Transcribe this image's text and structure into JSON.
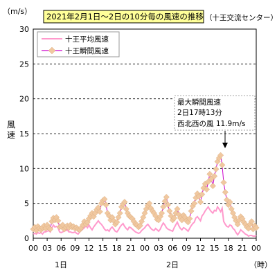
{
  "chart_data": {
    "type": "line",
    "title": "2021年2月1日～2日の10分毎の風速の推移",
    "subtitle": "（十王交流センター）",
    "ylabel": "風速",
    "yunit": "（m/s）",
    "xunit": "（時）",
    "ylim": [
      0,
      30
    ],
    "yticks": [
      "0",
      "5",
      "10",
      "15",
      "20",
      "25",
      "30"
    ],
    "xticks": [
      "00",
      "03",
      "06",
      "09",
      "12",
      "15",
      "18",
      "21",
      "00",
      "03",
      "06",
      "09",
      "12",
      "15",
      "18",
      "21",
      "00"
    ],
    "day_labels": [
      "1日",
      "2日"
    ],
    "grid": "dashed-horizontal",
    "legend_position": "top-left",
    "annotation": {
      "lines": [
        "最大瞬間風速",
        "2日17時13分",
        "西北西の風 11.9m/s"
      ]
    },
    "colors": {
      "average": "#ff99cc",
      "gust_line": "#cc00cc",
      "gust_marker": "#f0c8a0",
      "title_bg": "#ffff99"
    },
    "series": [
      {
        "name": "十王平均風速",
        "points": [
          [
            0,
            0.6
          ],
          [
            2,
            0.7
          ],
          [
            4,
            0.6
          ],
          [
            6,
            0.8
          ],
          [
            8,
            0.7
          ],
          [
            10,
            0.8
          ],
          [
            12,
            0.6
          ],
          [
            14,
            0.9
          ],
          [
            16,
            0.9
          ],
          [
            18,
            1.0
          ],
          [
            20,
            1.1
          ],
          [
            22,
            0.9
          ],
          [
            24,
            1.4
          ],
          [
            26,
            1.9
          ],
          [
            28,
            1.6
          ],
          [
            30,
            1.7
          ],
          [
            32,
            1.5
          ],
          [
            34,
            0.9
          ],
          [
            36,
            0.8
          ],
          [
            38,
            0.9
          ],
          [
            40,
            1.0
          ],
          [
            42,
            1.1
          ],
          [
            44,
            1.2
          ],
          [
            46,
            0.9
          ],
          [
            48,
            0.9
          ],
          [
            50,
            0.8
          ],
          [
            52,
            0.8
          ],
          [
            54,
            0.9
          ],
          [
            56,
            0.7
          ],
          [
            58,
            0.6
          ],
          [
            60,
            0.9
          ],
          [
            62,
            1.1
          ],
          [
            64,
            1.3
          ],
          [
            66,
            1.5
          ],
          [
            68,
            1.8
          ],
          [
            70,
            1.5
          ],
          [
            72,
            1.9
          ],
          [
            74,
            1.5
          ],
          [
            76,
            1.2
          ],
          [
            78,
            1.6
          ],
          [
            80,
            1.9
          ],
          [
            82,
            2.2
          ],
          [
            84,
            2.5
          ],
          [
            86,
            2.2
          ],
          [
            88,
            2.0
          ],
          [
            90,
            1.7
          ],
          [
            92,
            1.3
          ],
          [
            94,
            1.1
          ],
          [
            96,
            1.2
          ],
          [
            98,
            1.0
          ],
          [
            100,
            1.4
          ],
          [
            102,
            1.6
          ],
          [
            104,
            1.3
          ],
          [
            106,
            1.0
          ],
          [
            108,
            0.9
          ],
          [
            110,
            1.2
          ],
          [
            112,
            1.6
          ],
          [
            114,
            1.9
          ],
          [
            116,
            2.1
          ],
          [
            118,
            1.7
          ],
          [
            120,
            1.4
          ],
          [
            122,
            1.2
          ],
          [
            124,
            1.6
          ],
          [
            126,
            1.5
          ],
          [
            128,
            1.3
          ],
          [
            130,
            1.1
          ],
          [
            132,
            0.9
          ],
          [
            134,
            0.8
          ],
          [
            136,
            0.7
          ],
          [
            138,
            0.8
          ],
          [
            140,
            1.1
          ],
          [
            142,
            1.3
          ],
          [
            144,
            1.5
          ],
          [
            146,
            1.8
          ],
          [
            148,
            2.0
          ],
          [
            150,
            1.7
          ],
          [
            152,
            1.4
          ],
          [
            154,
            1.2
          ],
          [
            156,
            1.1
          ],
          [
            158,
            1.4
          ],
          [
            160,
            1.2
          ],
          [
            162,
            1.0
          ],
          [
            164,
            1.3
          ],
          [
            166,
            1.8
          ],
          [
            168,
            2.2
          ],
          [
            170,
            1.9
          ],
          [
            172,
            1.5
          ],
          [
            174,
            1.3
          ],
          [
            176,
            1.2
          ],
          [
            178,
            1.1
          ],
          [
            180,
            1.0
          ],
          [
            182,
            1.5
          ],
          [
            184,
            1.9
          ],
          [
            186,
            2.3
          ],
          [
            188,
            1.8
          ],
          [
            190,
            1.4
          ],
          [
            192,
            1.2
          ],
          [
            194,
            1.5
          ],
          [
            196,
            1.4
          ],
          [
            198,
            1.2
          ],
          [
            200,
            1.0
          ],
          [
            202,
            1.4
          ],
          [
            204,
            1.8
          ],
          [
            206,
            2.1
          ],
          [
            208,
            2.3
          ],
          [
            210,
            2.9
          ],
          [
            212,
            3.1
          ],
          [
            214,
            2.8
          ],
          [
            216,
            2.5
          ],
          [
            218,
            3.2
          ],
          [
            220,
            3.5
          ],
          [
            222,
            3.9
          ],
          [
            224,
            4.2
          ],
          [
            226,
            4.5
          ],
          [
            228,
            4.1
          ],
          [
            230,
            3.8
          ],
          [
            232,
            3.6
          ],
          [
            234,
            4.0
          ],
          [
            236,
            3.9
          ],
          [
            238,
            4.5
          ],
          [
            240,
            4.2
          ],
          [
            242,
            3.8
          ],
          [
            244,
            4.3
          ],
          [
            246,
            2.4
          ],
          [
            248,
            2.0
          ],
          [
            250,
            1.7
          ],
          [
            252,
            1.6
          ],
          [
            254,
            1.9
          ],
          [
            256,
            1.8
          ],
          [
            258,
            1.4
          ],
          [
            260,
            1.2
          ],
          [
            262,
            0.8
          ],
          [
            264,
            0.5
          ],
          [
            266,
            0.8
          ],
          [
            268,
            1.2
          ],
          [
            270,
            1.0
          ],
          [
            272,
            0.8
          ],
          [
            274,
            0.6
          ],
          [
            276,
            0.5
          ],
          [
            278,
            0.3
          ],
          [
            280,
            0.4
          ],
          [
            282,
            0.4
          ],
          [
            284,
            0.3
          ],
          [
            286,
            0.3
          ],
          [
            288,
            0.4
          ]
        ]
      },
      {
        "name": "十王瞬間風速",
        "points": [
          [
            0,
            1.3
          ],
          [
            2,
            1.6
          ],
          [
            4,
            1.1
          ],
          [
            6,
            1.7
          ],
          [
            8,
            1.4
          ],
          [
            10,
            1.2
          ],
          [
            12,
            1.5
          ],
          [
            14,
            1.8
          ],
          [
            16,
            1.4
          ],
          [
            18,
            1.9
          ],
          [
            20,
            1.5
          ],
          [
            22,
            1.3
          ],
          [
            24,
            2.4
          ],
          [
            26,
            2.9
          ],
          [
            28,
            2.6
          ],
          [
            30,
            3.0
          ],
          [
            32,
            2.5
          ],
          [
            34,
            1.6
          ],
          [
            36,
            1.7
          ],
          [
            38,
            1.9
          ],
          [
            40,
            1.3
          ],
          [
            42,
            1.6
          ],
          [
            44,
            1.8
          ],
          [
            46,
            1.5
          ],
          [
            48,
            1.9
          ],
          [
            50,
            1.6
          ],
          [
            52,
            1.7
          ],
          [
            54,
            1.4
          ],
          [
            56,
            1.5
          ],
          [
            58,
            1.3
          ],
          [
            60,
            1.2
          ],
          [
            62,
            1.5
          ],
          [
            64,
            1.9
          ],
          [
            66,
            2.4
          ],
          [
            68,
            2.0
          ],
          [
            70,
            2.3
          ],
          [
            72,
            2.8
          ],
          [
            74,
            3.2
          ],
          [
            76,
            3.6
          ],
          [
            78,
            3.1
          ],
          [
            80,
            3.6
          ],
          [
            82,
            4.1
          ],
          [
            84,
            4.4
          ],
          [
            86,
            3.8
          ],
          [
            88,
            5.0
          ],
          [
            90,
            5.4
          ],
          [
            92,
            5.6
          ],
          [
            94,
            4.8
          ],
          [
            96,
            3.6
          ],
          [
            98,
            3.2
          ],
          [
            100,
            2.6
          ],
          [
            102,
            3.0
          ],
          [
            104,
            2.5
          ],
          [
            106,
            2.0
          ],
          [
            108,
            2.3
          ],
          [
            110,
            3.0
          ],
          [
            112,
            3.6
          ],
          [
            114,
            4.5
          ],
          [
            116,
            4.9
          ],
          [
            118,
            5.2
          ],
          [
            120,
            4.2
          ],
          [
            122,
            3.6
          ],
          [
            124,
            3.2
          ],
          [
            126,
            3.0
          ],
          [
            128,
            2.8
          ],
          [
            130,
            2.4
          ],
          [
            132,
            2.0
          ],
          [
            134,
            1.9
          ],
          [
            136,
            1.6
          ],
          [
            138,
            1.8
          ],
          [
            140,
            2.4
          ],
          [
            142,
            3.0
          ],
          [
            144,
            3.6
          ],
          [
            146,
            4.2
          ],
          [
            148,
            4.7
          ],
          [
            150,
            5.0
          ],
          [
            152,
            4.3
          ],
          [
            154,
            3.9
          ],
          [
            156,
            3.6
          ],
          [
            158,
            3.2
          ],
          [
            160,
            2.7
          ],
          [
            162,
            2.6
          ],
          [
            164,
            3.1
          ],
          [
            166,
            3.6
          ],
          [
            168,
            4.5
          ],
          [
            170,
            5.3
          ],
          [
            172,
            5.9
          ],
          [
            174,
            4.8
          ],
          [
            176,
            3.9
          ],
          [
            178,
            3.2
          ],
          [
            180,
            2.6
          ],
          [
            182,
            2.9
          ],
          [
            184,
            3.6
          ],
          [
            186,
            4.2
          ],
          [
            188,
            3.4
          ],
          [
            190,
            2.9
          ],
          [
            192,
            2.6
          ],
          [
            194,
            3.3
          ],
          [
            196,
            3.0
          ],
          [
            198,
            2.5
          ],
          [
            200,
            2.3
          ],
          [
            202,
            2.8
          ],
          [
            204,
            3.9
          ],
          [
            206,
            4.6
          ],
          [
            208,
            5.0
          ],
          [
            210,
            5.8
          ],
          [
            212,
            6.4
          ],
          [
            214,
            6.0
          ],
          [
            216,
            5.2
          ],
          [
            218,
            6.3
          ],
          [
            220,
            7.2
          ],
          [
            222,
            7.8
          ],
          [
            224,
            7.0
          ],
          [
            226,
            8.1
          ],
          [
            228,
            9.2
          ],
          [
            230,
            8.5
          ],
          [
            232,
            7.5
          ],
          [
            234,
            8.9
          ],
          [
            236,
            9.9
          ],
          [
            238,
            11.0
          ],
          [
            240,
            11.5
          ],
          [
            242,
            11.9
          ],
          [
            244,
            10.5
          ],
          [
            246,
            8.0
          ],
          [
            248,
            6.6
          ],
          [
            250,
            5.5
          ],
          [
            252,
            4.8
          ],
          [
            254,
            5.2
          ],
          [
            256,
            4.2
          ],
          [
            258,
            3.6
          ],
          [
            260,
            3.0
          ],
          [
            262,
            2.5
          ],
          [
            264,
            2.0
          ],
          [
            266,
            2.6
          ],
          [
            268,
            3.1
          ],
          [
            270,
            2.8
          ],
          [
            272,
            2.3
          ],
          [
            274,
            2.0
          ],
          [
            276,
            1.6
          ],
          [
            278,
            1.4
          ],
          [
            280,
            2.0
          ],
          [
            282,
            2.4
          ],
          [
            284,
            1.3
          ],
          [
            286,
            1.8
          ],
          [
            288,
            1.5
          ]
        ]
      }
    ]
  }
}
